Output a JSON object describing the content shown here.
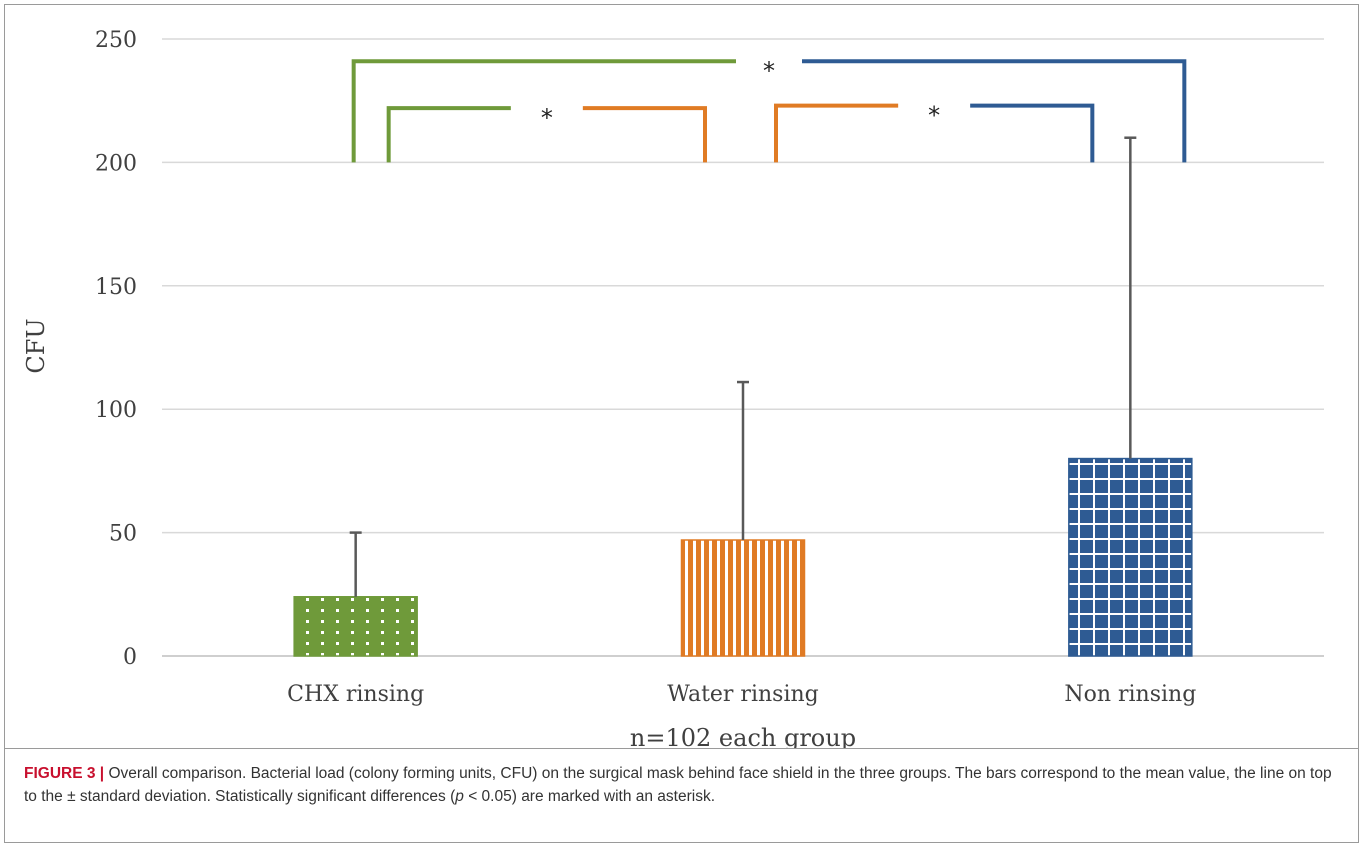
{
  "chart_data": {
    "type": "bar",
    "categories": [
      "CHX rinsing",
      "Water rinsing",
      "Non rinsing"
    ],
    "values": [
      24,
      47,
      80
    ],
    "error_upper": [
      50,
      111,
      210
    ],
    "colors": [
      "#6f9a3a",
      "#e07b24",
      "#2e5b93"
    ],
    "patterns": [
      "dots",
      "vertical-lines",
      "grid"
    ],
    "xlabel": "n=102 each group",
    "ylabel": "CFU",
    "ylim": [
      0,
      250
    ],
    "yticks": [
      0,
      50,
      100,
      150,
      200,
      250
    ],
    "grid": true,
    "significance": [
      {
        "from": "CHX rinsing",
        "to": "Water rinsing",
        "label": "*",
        "y": 222
      },
      {
        "from": "Water rinsing",
        "to": "Non rinsing",
        "label": "*",
        "y": 223
      },
      {
        "from": "CHX rinsing",
        "to": "Non rinsing",
        "label": "*",
        "y": 241
      }
    ]
  },
  "caption": {
    "label": "FIGURE 3 |",
    "text_1": " Overall comparison. Bacterial load (colony forming units, CFU) on the surgical mask behind face shield in the three groups. The bars correspond to the mean value, the line on top to the ± standard deviation. Statistically significant differences (",
    "p_symbol": "p",
    "text_2": " < 0.05) are marked with an asterisk."
  }
}
